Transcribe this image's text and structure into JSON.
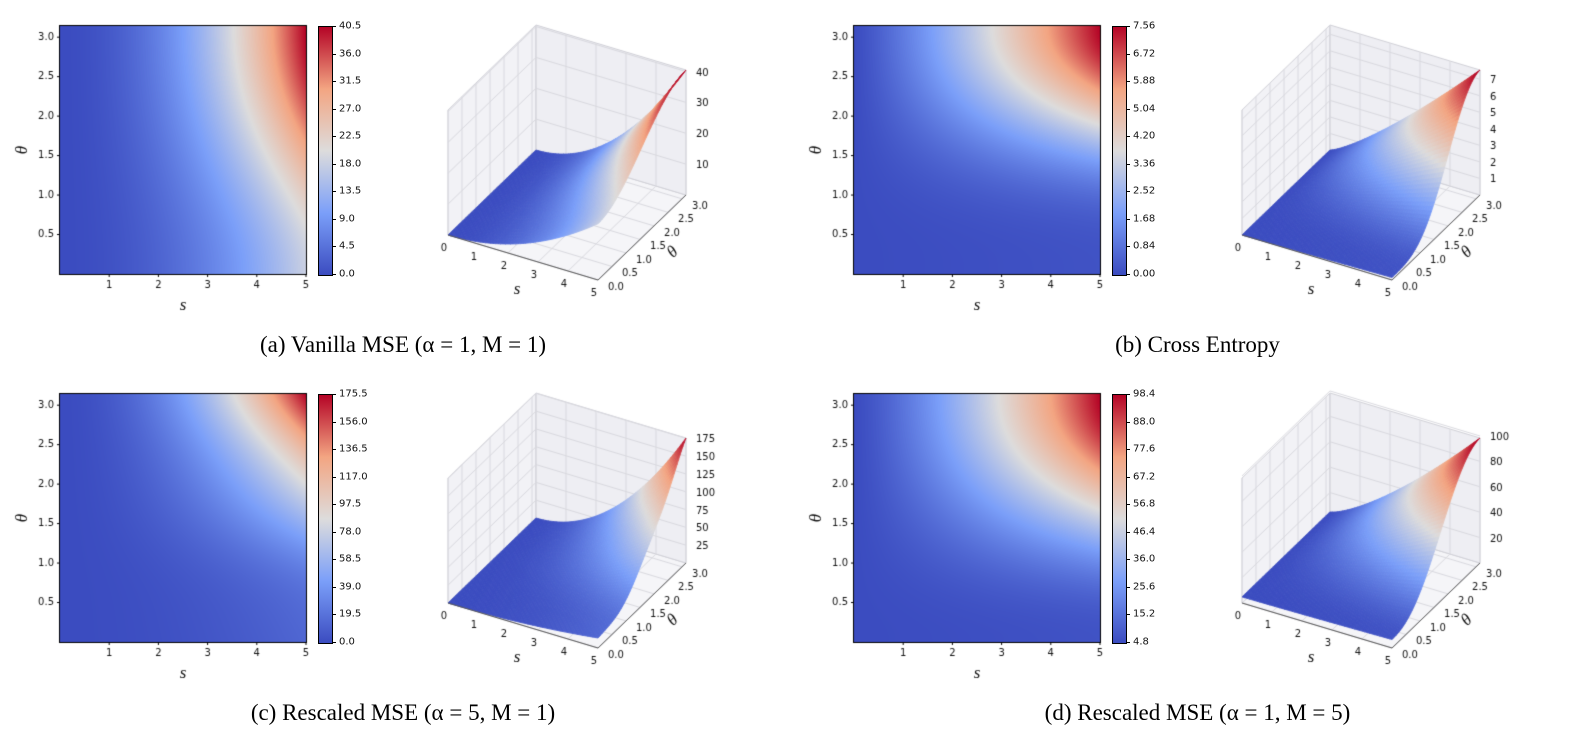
{
  "figure": {
    "background": "#ffffff",
    "colormap": {
      "name": "coolwarm",
      "stops": [
        "#3b4cc0",
        "#7b9ff9",
        "#dddcdc",
        "#f3a582",
        "#b40426"
      ]
    }
  },
  "chart_data": {
    "type": "heatmap",
    "description": "Four panels; each shows a loss value over s (0..5) and theta (0..pi) as a 2D heatmap with colorbar plus a 3D surface plot of the same function, coolwarm colormap.",
    "panels": [
      {
        "id": "a",
        "caption": "(a) Vanilla MSE (α = 1, M = 1)",
        "xlabel": "s",
        "ylabel": "θ",
        "x_range": [
          0,
          5
        ],
        "y_range": [
          0,
          3.14159
        ],
        "z_range": [
          0,
          40.5
        ],
        "heatmap_x_ticks": [
          "1",
          "2",
          "3",
          "4",
          "5"
        ],
        "heatmap_y_ticks": [
          "0.5",
          "1.0",
          "1.5",
          "2.0",
          "2.5",
          "3.0"
        ],
        "colorbar_ticks_top_to_bottom": [
          "40.5",
          "36.0",
          "31.5",
          "27.0",
          "22.5",
          "18.0",
          "13.5",
          "9.0",
          "4.5",
          "0.0"
        ],
        "surface_x_ticks": [
          "0",
          "1",
          "2",
          "3",
          "4",
          "5"
        ],
        "surface_y_ticks": [
          "0.0",
          "0.5",
          "1.0",
          "1.5",
          "2.0",
          "2.5",
          "3.0"
        ],
        "surface_z_ticks": [
          "10",
          "20",
          "30",
          "40"
        ],
        "surface_params": {
          "ps": 2,
          "c": 0.45,
          "pt": 1,
          "vmin": 0,
          "vmax": 40.5,
          "ra": 0,
          "rf": 0
        }
      },
      {
        "id": "b",
        "caption": "(b) Cross Entropy",
        "xlabel": "s",
        "ylabel": "θ",
        "x_range": [
          0,
          5
        ],
        "y_range": [
          0,
          3.14159
        ],
        "z_range": [
          0,
          7.56
        ],
        "heatmap_x_ticks": [
          "1",
          "2",
          "3",
          "4",
          "5"
        ],
        "heatmap_y_ticks": [
          "0.5",
          "1.0",
          "1.5",
          "2.0",
          "2.5",
          "3.0"
        ],
        "colorbar_ticks_top_to_bottom": [
          "7.56",
          "6.72",
          "5.88",
          "5.04",
          "4.20",
          "3.36",
          "2.52",
          "1.68",
          "0.84",
          "0.00"
        ],
        "surface_x_ticks": [
          "0",
          "1",
          "2",
          "3",
          "4",
          "5"
        ],
        "surface_y_ticks": [
          "0.0",
          "0.5",
          "1.0",
          "1.5",
          "2.0",
          "2.5",
          "3.0"
        ],
        "surface_z_ticks": [
          "1",
          "2",
          "3",
          "4",
          "5",
          "6",
          "7"
        ],
        "surface_params": {
          "ps": 1.2,
          "c": 0.02,
          "pt": 1.7,
          "vmin": 0,
          "vmax": 7.56,
          "ra": 0,
          "rf": 0
        }
      },
      {
        "id": "c",
        "caption": "(c) Rescaled MSE (α = 5, M = 1)",
        "xlabel": "s",
        "ylabel": "θ",
        "x_range": [
          0,
          5
        ],
        "y_range": [
          0,
          3.14159
        ],
        "z_range": [
          0,
          175.5
        ],
        "heatmap_x_ticks": [
          "1",
          "2",
          "3",
          "4",
          "5"
        ],
        "heatmap_y_ticks": [
          "0.5",
          "1.0",
          "1.5",
          "2.0",
          "2.5",
          "3.0"
        ],
        "colorbar_ticks_top_to_bottom": [
          "175.5",
          "156.0",
          "136.5",
          "117.0",
          "97.5",
          "78.0",
          "58.5",
          "39.0",
          "19.5",
          "0.0"
        ],
        "surface_x_ticks": [
          "0",
          "1",
          "2",
          "3",
          "4",
          "5"
        ],
        "surface_y_ticks": [
          "0.0",
          "0.5",
          "1.0",
          "1.5",
          "2.0",
          "2.5",
          "3.0"
        ],
        "surface_z_ticks": [
          "25",
          "50",
          "75",
          "100",
          "125",
          "150",
          "175"
        ],
        "surface_params": {
          "ps": 2,
          "c": 0.08,
          "pt": 1.8,
          "vmin": 0,
          "vmax": 175.5,
          "ra": 0.18,
          "rf": 2
        }
      },
      {
        "id": "d",
        "caption": "(d) Rescaled MSE (α = 1, M = 5)",
        "xlabel": "s",
        "ylabel": "θ",
        "x_range": [
          0,
          5
        ],
        "y_range": [
          0,
          3.14159
        ],
        "z_range": [
          4.8,
          98.4
        ],
        "heatmap_x_ticks": [
          "1",
          "2",
          "3",
          "4",
          "5"
        ],
        "heatmap_y_ticks": [
          "0.5",
          "1.0",
          "1.5",
          "2.0",
          "2.5",
          "3.0"
        ],
        "colorbar_ticks_top_to_bottom": [
          "98.4",
          "88.0",
          "77.6",
          "67.2",
          "56.8",
          "46.4",
          "36.0",
          "25.6",
          "15.2",
          "4.8"
        ],
        "surface_x_ticks": [
          "0",
          "1",
          "2",
          "3",
          "4",
          "5"
        ],
        "surface_y_ticks": [
          "0.0",
          "0.5",
          "1.0",
          "1.5",
          "2.0",
          "2.5",
          "3.0"
        ],
        "surface_z_ticks": [
          "20",
          "40",
          "60",
          "80",
          "100"
        ],
        "surface_params": {
          "ps": 1.3,
          "c": 0.02,
          "pt": 1.2,
          "vmin": 4.8,
          "vmax": 98.4,
          "ra": 0,
          "rf": 0
        }
      }
    ]
  }
}
